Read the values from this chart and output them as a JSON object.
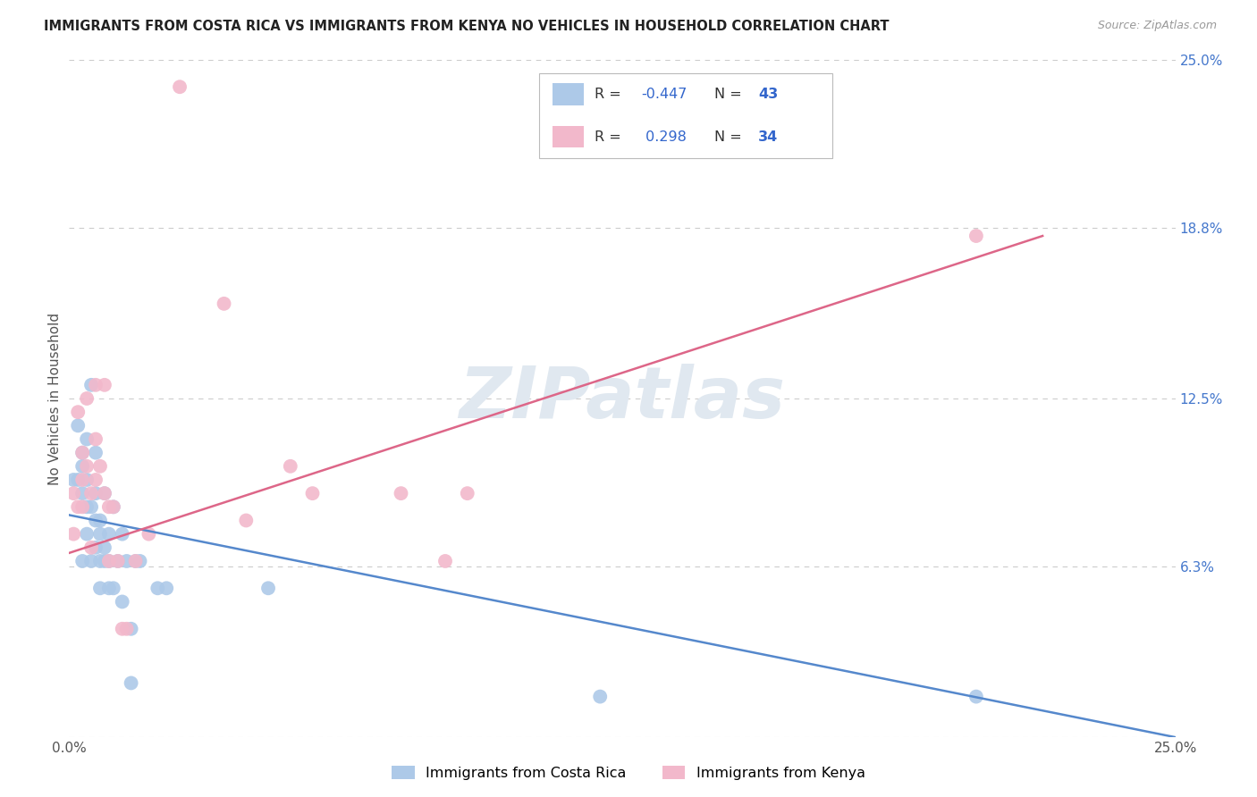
{
  "title": "IMMIGRANTS FROM COSTA RICA VS IMMIGRANTS FROM KENYA NO VEHICLES IN HOUSEHOLD CORRELATION CHART",
  "source": "Source: ZipAtlas.com",
  "ylabel": "No Vehicles in Household",
  "x_min": 0.0,
  "x_max": 0.25,
  "y_min": 0.0,
  "y_max": 0.25,
  "y_ticks_right": [
    0.0,
    0.063,
    0.125,
    0.188,
    0.25
  ],
  "y_tick_labels_right": [
    "",
    "6.3%",
    "12.5%",
    "18.8%",
    "25.0%"
  ],
  "watermark_text": "ZIPatlas",
  "color_blue": "#adc9e8",
  "color_pink": "#f2b8cb",
  "line_color_blue": "#5588cc",
  "line_color_pink": "#dd6688",
  "costa_rica_x": [
    0.001,
    0.002,
    0.002,
    0.003,
    0.003,
    0.003,
    0.003,
    0.004,
    0.004,
    0.004,
    0.004,
    0.005,
    0.005,
    0.005,
    0.006,
    0.006,
    0.006,
    0.006,
    0.007,
    0.007,
    0.007,
    0.007,
    0.008,
    0.008,
    0.008,
    0.009,
    0.009,
    0.009,
    0.01,
    0.01,
    0.011,
    0.012,
    0.012,
    0.013,
    0.014,
    0.014,
    0.015,
    0.016,
    0.02,
    0.022,
    0.045,
    0.12,
    0.205
  ],
  "costa_rica_y": [
    0.095,
    0.115,
    0.095,
    0.105,
    0.1,
    0.09,
    0.065,
    0.11,
    0.095,
    0.085,
    0.075,
    0.13,
    0.085,
    0.065,
    0.105,
    0.09,
    0.08,
    0.07,
    0.08,
    0.075,
    0.065,
    0.055,
    0.09,
    0.07,
    0.065,
    0.075,
    0.065,
    0.055,
    0.085,
    0.055,
    0.065,
    0.075,
    0.05,
    0.065,
    0.04,
    0.02,
    0.065,
    0.065,
    0.055,
    0.055,
    0.055,
    0.015,
    0.015
  ],
  "kenya_x": [
    0.001,
    0.001,
    0.002,
    0.002,
    0.003,
    0.003,
    0.003,
    0.004,
    0.004,
    0.005,
    0.005,
    0.006,
    0.006,
    0.006,
    0.007,
    0.008,
    0.008,
    0.009,
    0.009,
    0.01,
    0.011,
    0.012,
    0.013,
    0.015,
    0.018,
    0.025,
    0.035,
    0.04,
    0.05,
    0.055,
    0.075,
    0.085,
    0.09,
    0.205
  ],
  "kenya_y": [
    0.09,
    0.075,
    0.12,
    0.085,
    0.095,
    0.085,
    0.105,
    0.125,
    0.1,
    0.09,
    0.07,
    0.13,
    0.11,
    0.095,
    0.1,
    0.13,
    0.09,
    0.085,
    0.065,
    0.085,
    0.065,
    0.04,
    0.04,
    0.065,
    0.075,
    0.24,
    0.16,
    0.08,
    0.1,
    0.09,
    0.09,
    0.065,
    0.09,
    0.185
  ],
  "blue_line_x": [
    0.0,
    0.25
  ],
  "blue_line_y": [
    0.082,
    0.0
  ],
  "pink_line_x": [
    0.0,
    0.22
  ],
  "pink_line_y": [
    0.068,
    0.185
  ],
  "background_color": "#ffffff",
  "grid_color": "#cccccc",
  "legend_items": [
    {
      "color": "#adc9e8",
      "r_label": "R = ",
      "r_val": "-0.447",
      "n_label": "N = ",
      "n_val": "43"
    },
    {
      "color": "#f2b8cb",
      "r_label": "R =  ",
      "r_val": " 0.298",
      "n_label": "N = ",
      "n_val": "34"
    }
  ],
  "bottom_legend": [
    "Immigrants from Costa Rica",
    "Immigrants from Kenya"
  ]
}
